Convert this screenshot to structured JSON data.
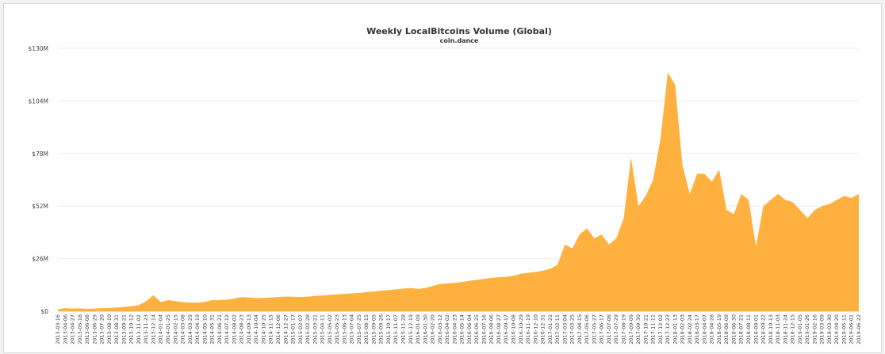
{
  "chart_data": {
    "type": "area",
    "title": "Weekly LocalBitcoins Volume (Global)",
    "subtitle": "coin.dance",
    "xlabel": "",
    "ylabel": "",
    "ylim": [
      0,
      130
    ],
    "yunit": "M",
    "grid": true,
    "legend": "none",
    "color": "#ffb13f",
    "y_ticks": [
      {
        "value": 0,
        "label": "$0"
      },
      {
        "value": 26,
        "label": "$26M"
      },
      {
        "value": 52,
        "label": "$52M"
      },
      {
        "value": 78,
        "label": "$78M"
      },
      {
        "value": 104,
        "label": "$104M"
      },
      {
        "value": 130,
        "label": "$130M"
      }
    ],
    "x_tick_labels": [
      "2013-03-16",
      "2013-04-06",
      "2013-04-27",
      "2013-05-18",
      "2013-06-08",
      "2013-06-29",
      "2013-07-20",
      "2013-08-10",
      "2013-08-31",
      "2013-09-21",
      "2013-10-12",
      "2013-11-02",
      "2013-11-23",
      "2013-12-14",
      "2014-01-04",
      "2014-01-25",
      "2014-02-15",
      "2014-03-08",
      "2014-03-29",
      "2014-04-19",
      "2014-05-10",
      "2014-05-31",
      "2014-06-21",
      "2014-07-12",
      "2014-08-02",
      "2014-08-23",
      "2014-09-13",
      "2014-10-04",
      "2014-10-25",
      "2014-11-15",
      "2014-12-06",
      "2014-12-27",
      "2015-01-17",
      "2015-02-07",
      "2015-02-28",
      "2015-03-21",
      "2015-04-11",
      "2015-05-02",
      "2015-05-23",
      "2015-06-13",
      "2015-07-04",
      "2015-07-25",
      "2015-08-15",
      "2015-09-05",
      "2015-09-26",
      "2015-10-17",
      "2015-11-07",
      "2015-11-28",
      "2015-12-19",
      "2016-01-09",
      "2016-01-30",
      "2016-02-20",
      "2016-03-12",
      "2016-04-02",
      "2016-04-23",
      "2016-05-14",
      "2016-06-04",
      "2016-06-25",
      "2016-07-16",
      "2016-08-06",
      "2016-08-27",
      "2016-09-17",
      "2016-10-08",
      "2016-10-29",
      "2016-11-19",
      "2016-12-10",
      "2016-12-31",
      "2017-01-21",
      "2017-02-11",
      "2017-03-04",
      "2017-03-25",
      "2017-04-15",
      "2017-05-06",
      "2017-05-27",
      "2017-06-17",
      "2017-07-08",
      "2017-07-29",
      "2017-08-19",
      "2017-09-09",
      "2017-09-30",
      "2017-10-21",
      "2017-11-11",
      "2017-12-02",
      "2017-12-23",
      "2018-01-13",
      "2018-02-03",
      "2018-02-24",
      "2018-03-17",
      "2018-04-07",
      "2018-04-28",
      "2018-05-19",
      "2018-06-09",
      "2018-06-30",
      "2018-07-21",
      "2018-08-11",
      "2018-09-01",
      "2018-09-22",
      "2018-10-13",
      "2018-11-03",
      "2018-11-24",
      "2018-12-15",
      "2019-01-05",
      "2019-01-26",
      "2019-02-16",
      "2019-03-09",
      "2019-03-30",
      "2019-04-20",
      "2019-05-11",
      "2019-06-01",
      "2019-06-22"
    ],
    "series": [
      {
        "values": [
          1.0,
          1.5,
          1.3,
          1.4,
          1.2,
          1.3,
          1.5,
          1.6,
          1.8,
          2.2,
          2.5,
          3.0,
          5.0,
          8.0,
          4.5,
          5.5,
          5.0,
          4.5,
          4.3,
          4.2,
          4.6,
          5.5,
          5.5,
          5.8,
          6.3,
          7.0,
          6.8,
          6.5,
          6.6,
          6.8,
          7.0,
          7.2,
          7.2,
          7.0,
          7.2,
          7.6,
          7.8,
          8.1,
          8.3,
          8.6,
          8.8,
          9.0,
          9.5,
          9.8,
          10.2,
          10.5,
          10.8,
          11.2,
          11.5,
          11.0,
          11.5,
          12.5,
          13.5,
          13.8,
          14.0,
          14.5,
          15.0,
          15.5,
          16.0,
          16.5,
          16.8,
          17.0,
          17.5,
          18.5,
          19.0,
          19.5,
          20.0,
          21.0,
          23.0,
          33.0,
          31.0,
          38.0,
          41.0,
          36.0,
          38.0,
          33.0,
          36.0,
          46.0,
          76.0,
          52.0,
          57.0,
          65.0,
          85.0,
          118.0,
          112.0,
          72.0,
          58.0,
          68.0,
          68.0,
          64.0,
          70.0,
          50.0,
          48.0,
          58.0,
          55.0,
          32.0,
          52.0,
          55.0,
          58.0,
          55.0,
          54.0,
          50.0,
          46.0,
          50.0,
          52.0,
          53.0,
          55.0,
          57.0,
          56.0,
          58.0
        ]
      }
    ]
  }
}
